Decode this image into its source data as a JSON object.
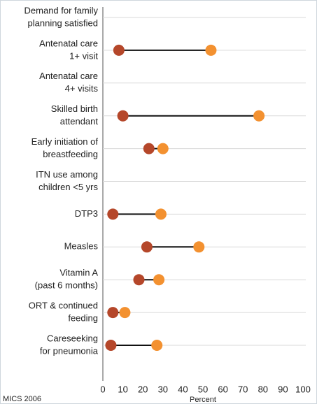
{
  "chart_data": {
    "type": "dumbbell",
    "categories": [
      [
        "Demand for family",
        "planning satisfied"
      ],
      [
        "Antenatal care",
        "1+ visit"
      ],
      [
        "Antenatal care",
        "4+ visits"
      ],
      [
        "Skilled birth",
        "attendant"
      ],
      [
        "Early initiation of",
        "breastfeeding"
      ],
      [
        "ITN use among",
        "children <5 yrs"
      ],
      [
        "DTP3"
      ],
      [
        "Measles"
      ],
      [
        "Vitamin A",
        "(past 6 months)"
      ],
      [
        "ORT & continued",
        "feeding"
      ],
      [
        "Careseeking",
        "for pneumonia"
      ]
    ],
    "series": [
      {
        "color": "#b5472a",
        "values": [
          null,
          8,
          null,
          10,
          23,
          null,
          5,
          22,
          18,
          5,
          4
        ]
      },
      {
        "color": "#f39130",
        "values": [
          null,
          54,
          null,
          78,
          30,
          null,
          29,
          48,
          28,
          11,
          27
        ]
      }
    ],
    "xlim": [
      0,
      100
    ],
    "xticks": [
      0,
      10,
      20,
      30,
      40,
      50,
      60,
      70,
      80,
      90,
      100
    ],
    "xlabel": "Percent",
    "source": "MICS 2006"
  }
}
